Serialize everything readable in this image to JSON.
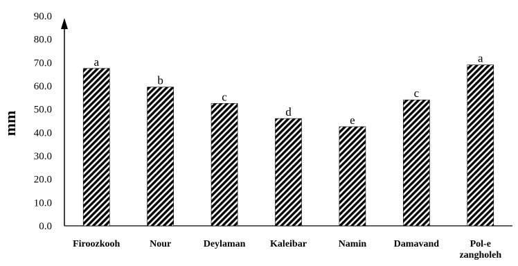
{
  "chart_data": {
    "type": "bar",
    "title": "",
    "xlabel": "",
    "ylabel": "mm",
    "ylim": [
      0,
      90
    ],
    "ytick_labels": [
      "0.0",
      "10.0",
      "20.0",
      "30.0",
      "40.0",
      "50.0",
      "60.0",
      "70.0",
      "80.0",
      "90.0"
    ],
    "categories": [
      "Firoozkooh",
      "Nour",
      "Deylaman",
      "Kaleibar",
      "Namin",
      "Damavand",
      "Pol-e zangholeh"
    ],
    "category_lines": [
      [
        "Firoozkooh"
      ],
      [
        "Nour"
      ],
      [
        "Deylaman"
      ],
      [
        "Kaleibar"
      ],
      [
        "Namin"
      ],
      [
        "Damavand"
      ],
      [
        "Pol-e",
        "zangholeh"
      ]
    ],
    "values": [
      67.5,
      59.5,
      52.5,
      46.0,
      42.5,
      54.0,
      69.0
    ],
    "significance_letters": [
      "a",
      "b",
      "c",
      "d",
      "e",
      "c",
      "a"
    ],
    "grid": false,
    "legend": "none",
    "bar_fill": "diagonal-hatch",
    "bar_color": "#000000"
  }
}
